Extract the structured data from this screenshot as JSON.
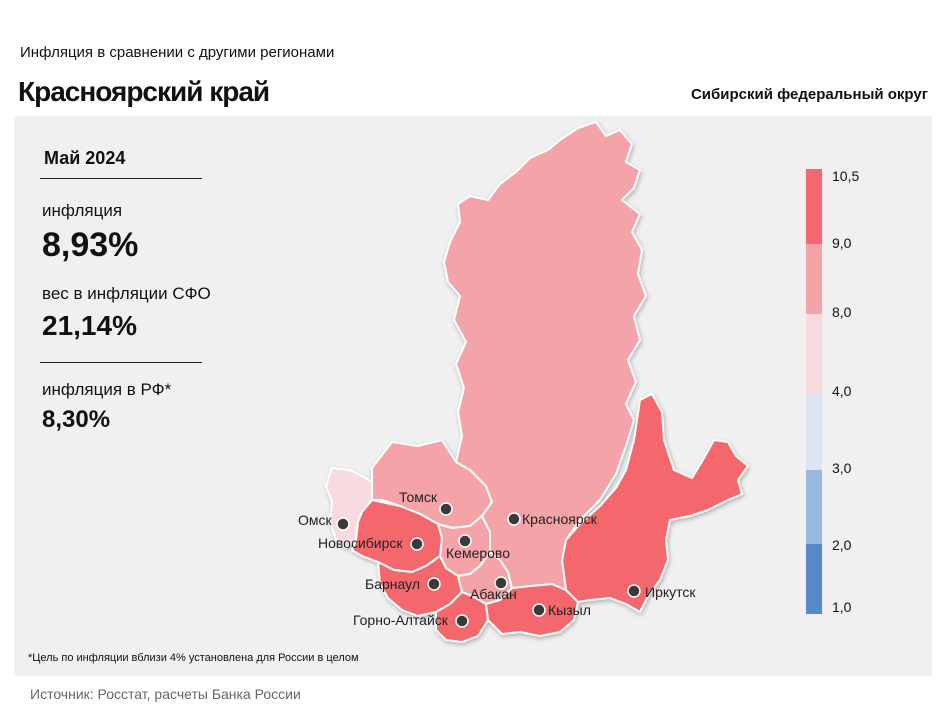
{
  "header": {
    "subtitle": "Инфляция  в сравнении  с другими  регионами",
    "title": "Красноярский край",
    "district": "Сибирский федеральный округ"
  },
  "summary": {
    "period": "Май 2024",
    "inflation_label": "инфляция",
    "inflation_value": "8,93%",
    "weight_label": "вес в инфляции  СФО",
    "weight_value": "21,14%",
    "rf_label": "инфляция  в РФ*",
    "rf_value": "8,30%"
  },
  "cities": [
    {
      "name": "Омск"
    },
    {
      "name": "Томск"
    },
    {
      "name": "Новосибирск"
    },
    {
      "name": "Кемерово"
    },
    {
      "name": "Красноярск"
    },
    {
      "name": "Барнаул"
    },
    {
      "name": "Абакан"
    },
    {
      "name": "Горно-Алтайск"
    },
    {
      "name": "Кызыл"
    },
    {
      "name": "Иркутск"
    }
  ],
  "legend": {
    "ticks": [
      "10,5",
      "9,0",
      "8,0",
      "4,0",
      "3,0",
      "2,0",
      "1,0"
    ],
    "bands": [
      {
        "range": "9,0–10,5",
        "color": "#f4676d"
      },
      {
        "range": "8,0–9,0",
        "color": "#f4a3a8"
      },
      {
        "range": "4,0–8,0",
        "color": "#f9dade"
      },
      {
        "range": "3,0–4,0",
        "color": "#dde5f4"
      },
      {
        "range": "2,0–3,0",
        "color": "#9ab8dd"
      },
      {
        "range": "1,0–2,0",
        "color": "#5a8ac6"
      }
    ]
  },
  "footnote": "*Цель по инфляции вблизи 4% установлена для России в целом",
  "source": "Источник: Росстат, расчеты Банка России"
}
